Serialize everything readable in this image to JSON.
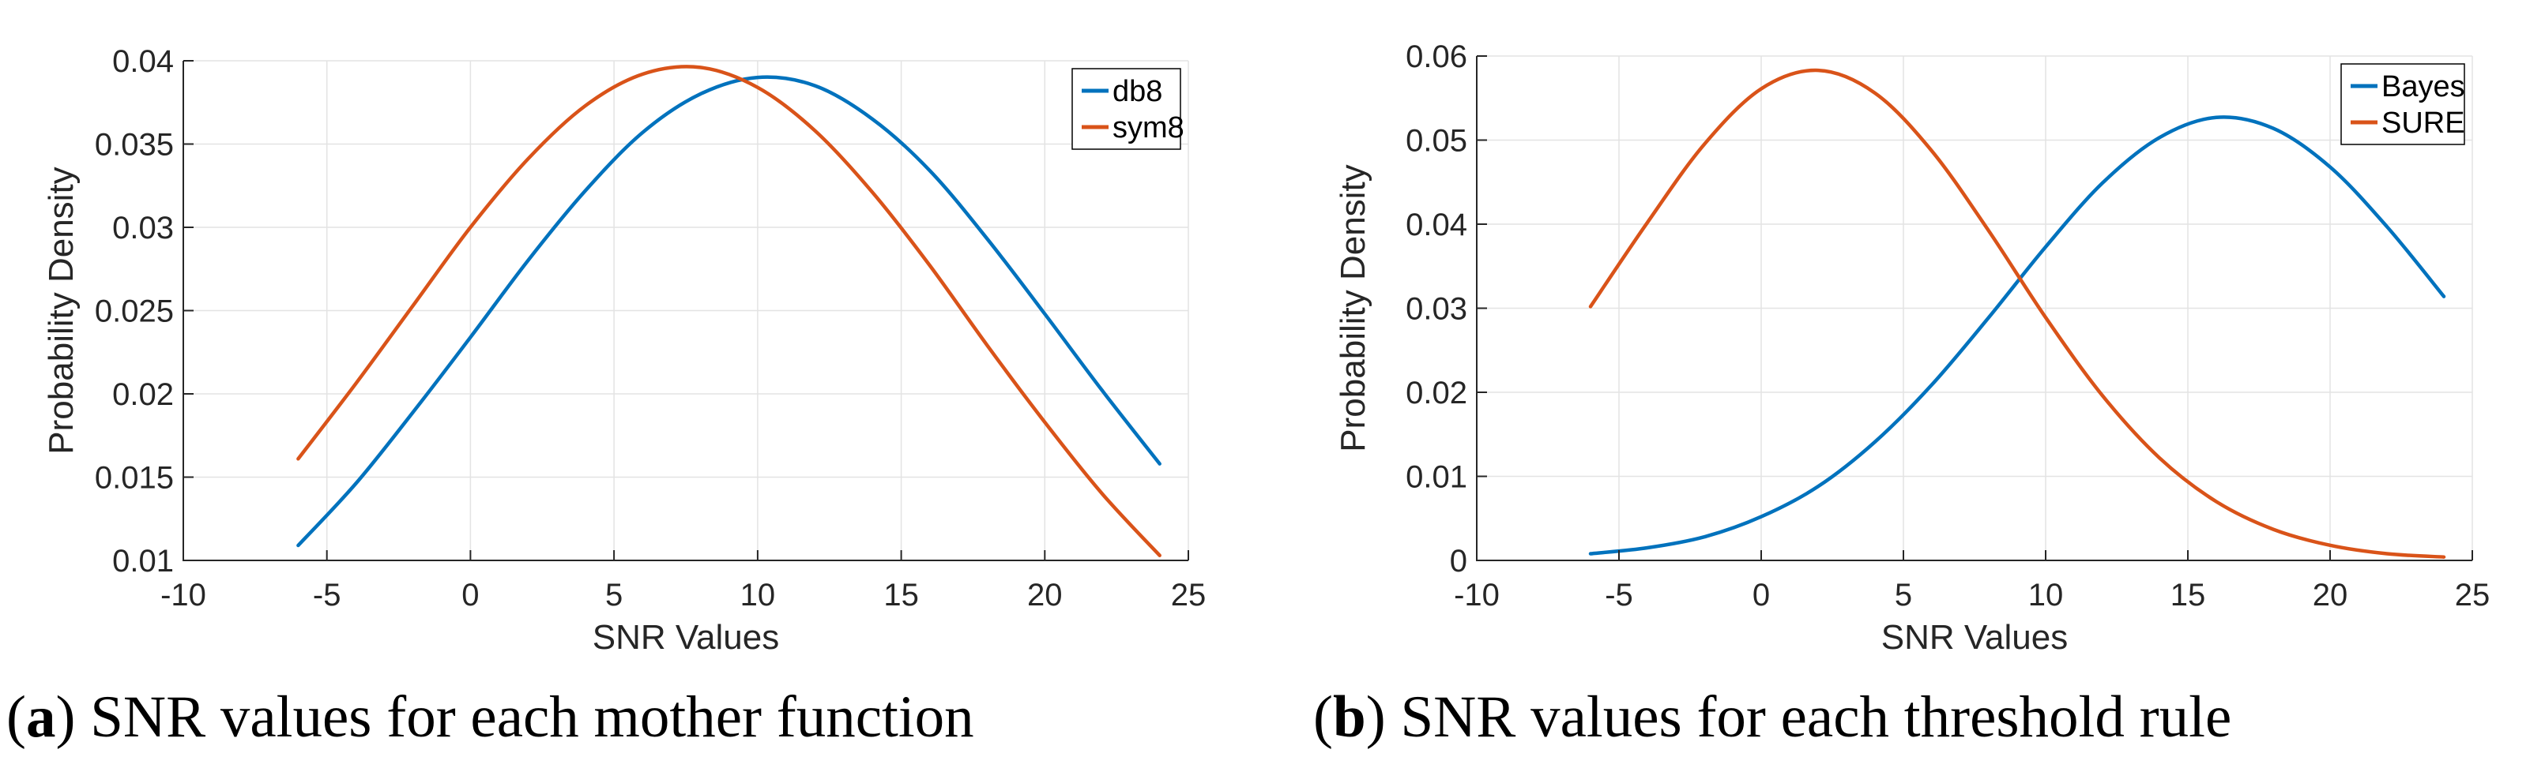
{
  "figure": {
    "background": "#ffffff",
    "captions": [
      {
        "prefix": "(",
        "letter": "a",
        "suffix": ")",
        "text": " SNR values for each mother function"
      },
      {
        "prefix": "(",
        "letter": "b",
        "suffix": ")",
        "text": " SNR values for each threshold rule"
      }
    ]
  },
  "colors": {
    "blue": "#0072BD",
    "orange": "#D95319",
    "axis": "#262626",
    "grid": "#E3E3E3",
    "legend_border": "#000000",
    "legend_fill": "#FFFFFF"
  },
  "chart_data": [
    {
      "id": "a",
      "type": "line",
      "title": "",
      "xlabel": "SNR Values",
      "ylabel": "Probability Density",
      "xlim": [
        -10,
        25
      ],
      "ylim": [
        0.01,
        0.04
      ],
      "grid": true,
      "legend_position": "top-right",
      "x_ticks": [
        -10,
        -5,
        0,
        5,
        10,
        15,
        20,
        25
      ],
      "x_tick_labels": [
        "-10",
        "-5",
        "0",
        "5",
        "10",
        "15",
        "20",
        "25"
      ],
      "y_ticks": [
        0.01,
        0.015,
        0.02,
        0.025,
        0.03,
        0.035,
        0.04
      ],
      "y_tick_labels": [
        "0.01",
        "0.015",
        "0.02",
        "0.025",
        "0.03",
        "0.035",
        "0.04"
      ],
      "series": [
        {
          "name": "db8",
          "color_key": "blue",
          "x": [
            -6,
            -4,
            -2,
            0,
            2,
            4,
            6,
            8,
            10,
            12,
            14,
            16,
            18,
            20,
            22,
            24
          ],
          "y": [
            0.0109,
            0.0146,
            0.0189,
            0.0234,
            0.028,
            0.0322,
            0.0357,
            0.038,
            0.039,
            0.0385,
            0.0365,
            0.0334,
            0.0293,
            0.0248,
            0.0202,
            0.0158
          ]
        },
        {
          "name": "sym8",
          "color_key": "orange",
          "x": [
            -6,
            -4,
            -2,
            0,
            2,
            4,
            6,
            8,
            10,
            12,
            14,
            16,
            18,
            20,
            22,
            24
          ],
          "y": [
            0.0161,
            0.0206,
            0.0253,
            0.03,
            0.0341,
            0.0373,
            0.0392,
            0.0396,
            0.0384,
            0.0358,
            0.0321,
            0.0277,
            0.0229,
            0.0183,
            0.014,
            0.0103
          ]
        }
      ]
    },
    {
      "id": "b",
      "type": "line",
      "title": "",
      "xlabel": "SNR Values",
      "ylabel": "Probability Density",
      "xlim": [
        -10,
        25
      ],
      "ylim": [
        0,
        0.06
      ],
      "grid": true,
      "legend_position": "top-right",
      "x_ticks": [
        -10,
        -5,
        0,
        5,
        10,
        15,
        20,
        25
      ],
      "x_tick_labels": [
        "-10",
        "-5",
        "0",
        "5",
        "10",
        "15",
        "20",
        "25"
      ],
      "y_ticks": [
        0,
        0.01,
        0.02,
        0.03,
        0.04,
        0.05,
        0.06
      ],
      "y_tick_labels": [
        "0",
        "0.01",
        "0.02",
        "0.03",
        "0.04",
        "0.05",
        "0.06"
      ],
      "series": [
        {
          "name": "Bayes",
          "color_key": "blue",
          "x": [
            -6,
            -4,
            -2,
            0,
            2,
            4,
            6,
            8,
            10,
            12,
            14,
            16,
            18,
            20,
            22,
            24
          ],
          "y": [
            0.0008,
            0.0015,
            0.0028,
            0.0052,
            0.0088,
            0.0141,
            0.0209,
            0.0289,
            0.0373,
            0.0449,
            0.0503,
            0.0527,
            0.0514,
            0.0468,
            0.0397,
            0.0314
          ]
        },
        {
          "name": "SURE",
          "color_key": "orange",
          "x": [
            -6,
            -4,
            -2,
            0,
            2,
            4,
            6,
            8,
            10,
            12,
            14,
            16,
            18,
            20,
            22,
            24
          ],
          "y": [
            0.0302,
            0.0402,
            0.0495,
            0.0561,
            0.0583,
            0.0556,
            0.0487,
            0.0392,
            0.0289,
            0.0196,
            0.0122,
            0.007,
            0.0037,
            0.0018,
            0.0008,
            0.0004
          ]
        }
      ]
    }
  ]
}
